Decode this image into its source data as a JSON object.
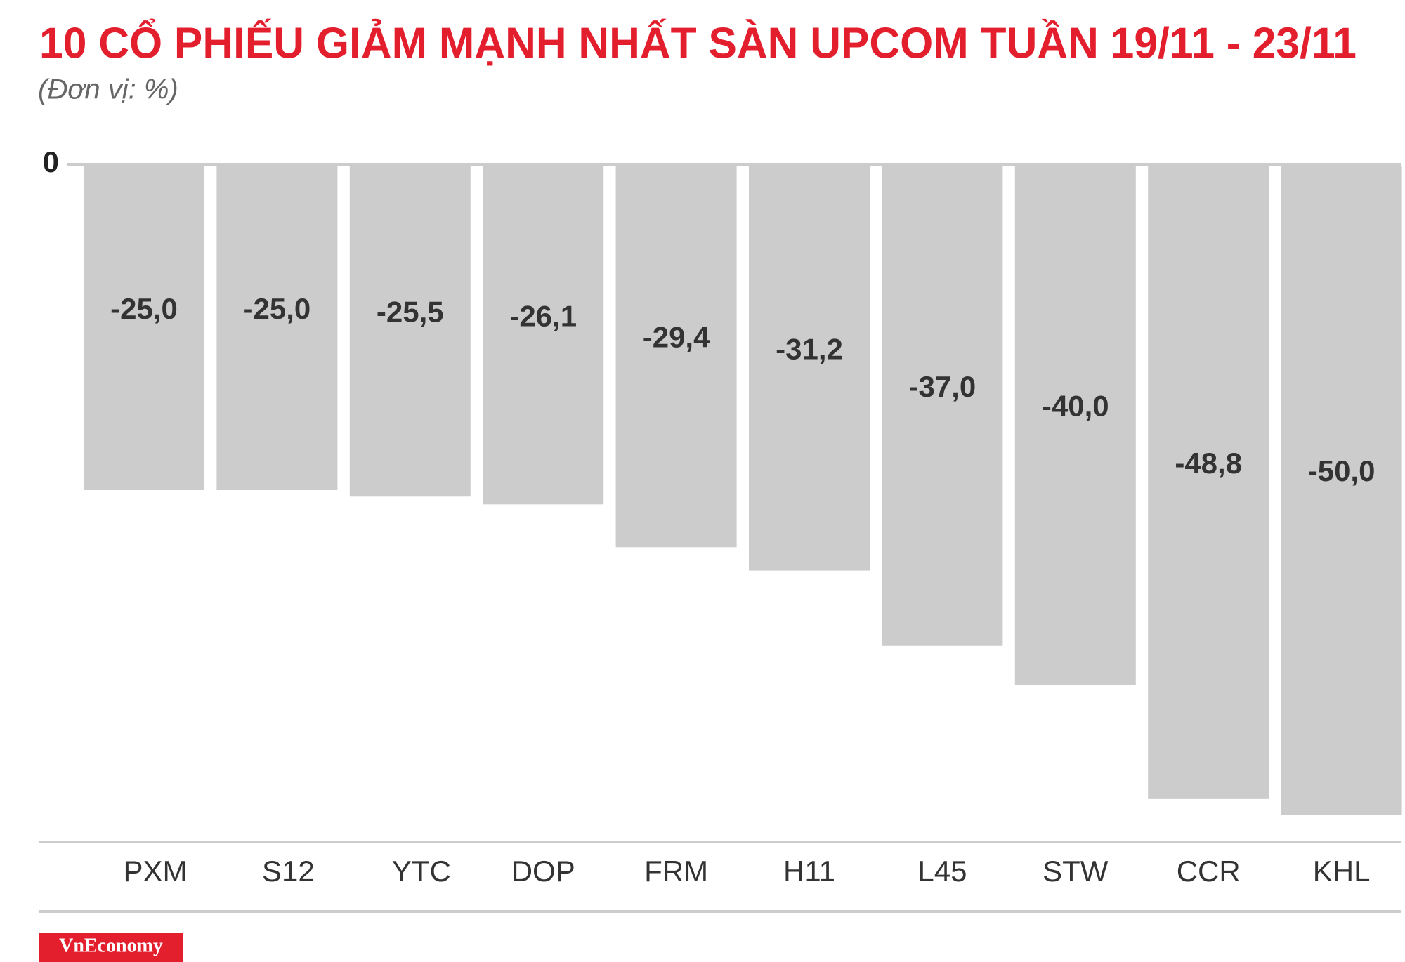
{
  "chart_data": {
    "type": "bar",
    "title": "10 CỔ PHIẾU GIẢM MẠNH NHẤT SÀN UPCOM TUẦN 19/11 - 23/11",
    "subtitle": "(Đơn vị: %)",
    "categories": [
      "PXM",
      "S12",
      "YTC",
      "DOP",
      "FRM",
      "H11",
      "L45",
      "STW",
      "CCR",
      "KHL"
    ],
    "values": [
      -25.0,
      -25.0,
      -25.5,
      -26.1,
      -29.4,
      -31.2,
      -37.0,
      -40.0,
      -48.8,
      -50.0
    ],
    "value_labels": [
      "-25,0",
      "-25,0",
      "-25,5",
      "-26,1",
      "-29,4",
      "-31,2",
      "-37,0",
      "-40,0",
      "-48,8",
      "-50,0"
    ],
    "color": "#cccccc",
    "ylim": [
      -50,
      0
    ],
    "yticks": [
      0
    ],
    "source": "VnEconomy"
  }
}
